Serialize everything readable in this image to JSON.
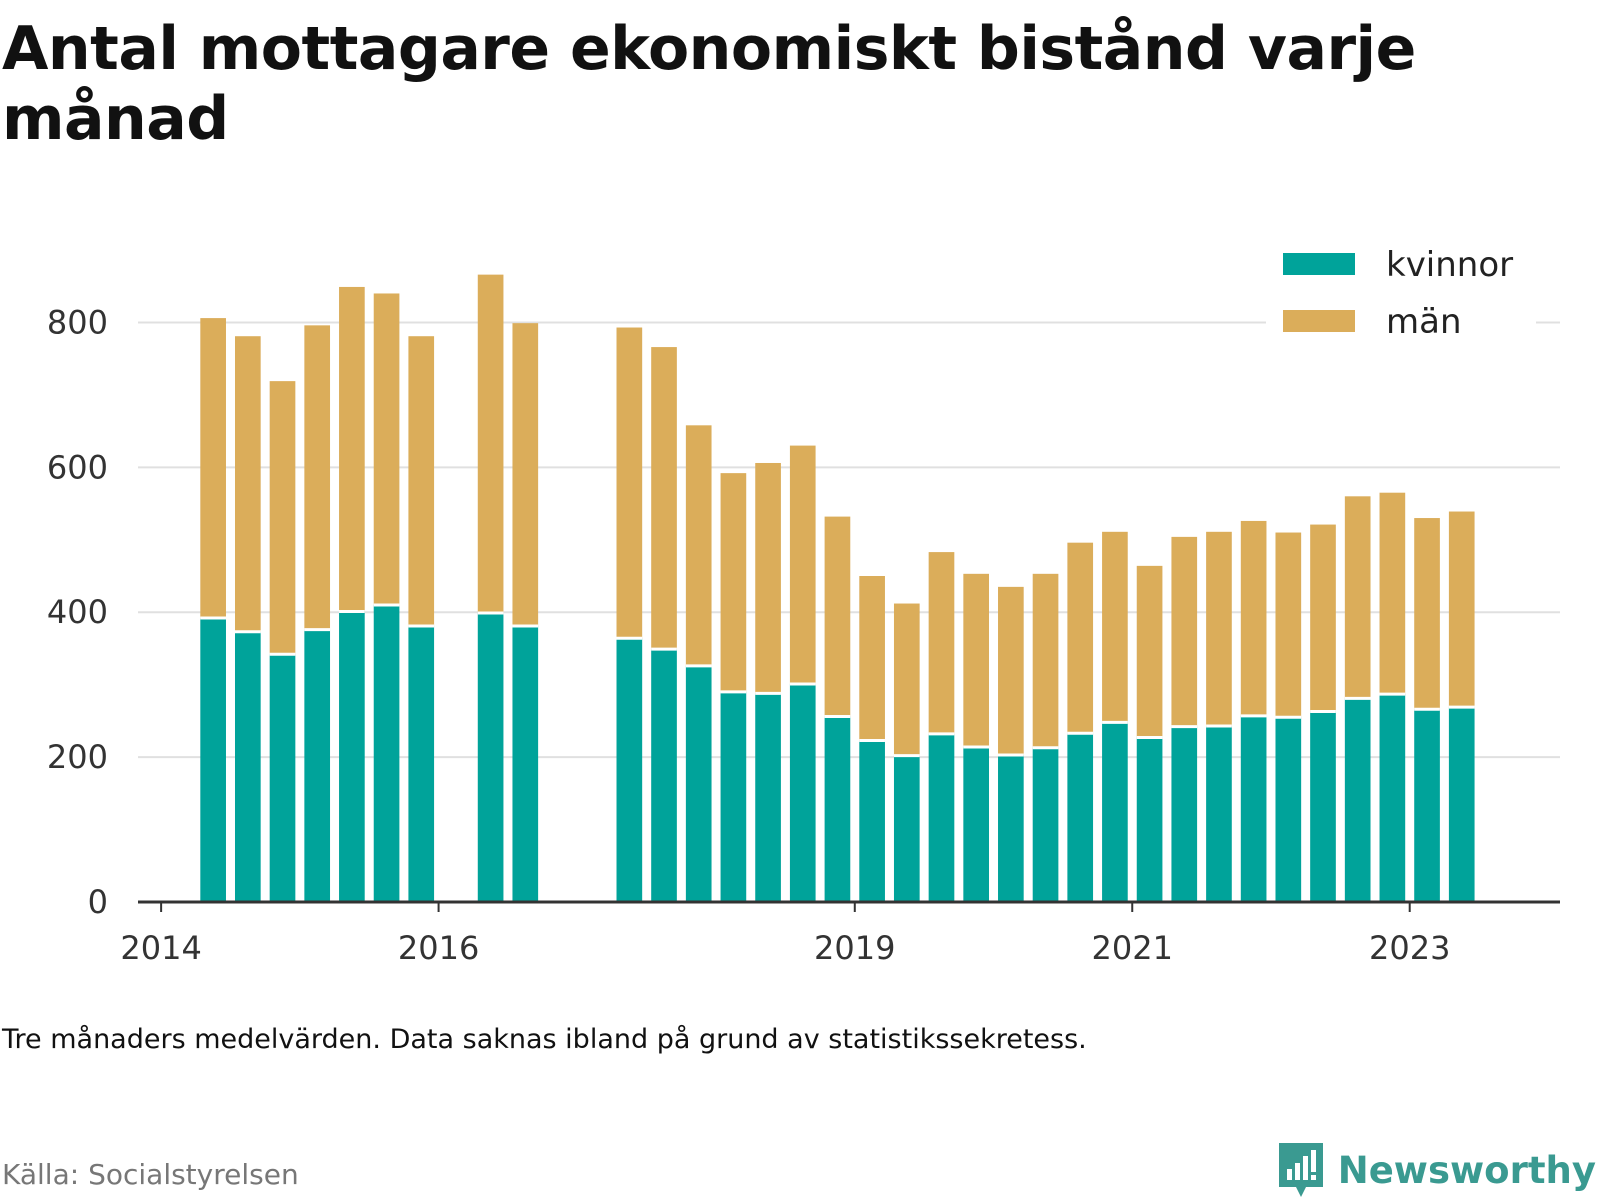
{
  "title": "Antal mottagare ekonomiskt bistånd varje månad",
  "note": "Tre månaders medelvärden. Data saknas ibland på grund av statistikssekretess.",
  "source": "Källa: Socialstyrelsen",
  "brand": "Newsworthy",
  "colors": {
    "kvinnor": "#00a39a",
    "man": "#dbad5a",
    "grid": "#e0e0e0",
    "axis": "#333333",
    "brand": "#3a9a91"
  },
  "chart_data": {
    "type": "bar",
    "stacked": true,
    "ylim": [
      0,
      900
    ],
    "yticks": [
      0,
      200,
      400,
      600,
      800
    ],
    "xlim": [
      "2013-11",
      "2024-02"
    ],
    "xticks": [
      "2014",
      "2016",
      "2019",
      "2021",
      "2023"
    ],
    "legend_position": "top-right",
    "grid": true,
    "series": [
      {
        "name": "kvinnor",
        "color": "#00a39a"
      },
      {
        "name": "män",
        "color": "#dbad5a"
      }
    ],
    "points": [
      {
        "period": "2014-04",
        "kvinnor": 392,
        "man": 414
      },
      {
        "period": "2014-07",
        "kvinnor": 373,
        "man": 408
      },
      {
        "period": "2014-10",
        "kvinnor": 342,
        "man": 377
      },
      {
        "period": "2015-01",
        "kvinnor": 376,
        "man": 420
      },
      {
        "period": "2015-04",
        "kvinnor": 401,
        "man": 448
      },
      {
        "period": "2015-07",
        "kvinnor": 410,
        "man": 430
      },
      {
        "period": "2015-10",
        "kvinnor": 381,
        "man": 400
      },
      {
        "period": "2016-04",
        "kvinnor": 399,
        "man": 467
      },
      {
        "period": "2016-07",
        "kvinnor": 381,
        "man": 418
      },
      {
        "period": "2017-04",
        "kvinnor": 364,
        "man": 429
      },
      {
        "period": "2017-07",
        "kvinnor": 349,
        "man": 417
      },
      {
        "period": "2017-10",
        "kvinnor": 326,
        "man": 332
      },
      {
        "period": "2018-01",
        "kvinnor": 290,
        "man": 302
      },
      {
        "period": "2018-04",
        "kvinnor": 288,
        "man": 318
      },
      {
        "period": "2018-07",
        "kvinnor": 301,
        "man": 329
      },
      {
        "period": "2018-10",
        "kvinnor": 256,
        "man": 276
      },
      {
        "period": "2019-01",
        "kvinnor": 223,
        "man": 227
      },
      {
        "period": "2019-04",
        "kvinnor": 202,
        "man": 210
      },
      {
        "period": "2019-07",
        "kvinnor": 232,
        "man": 251
      },
      {
        "period": "2019-10",
        "kvinnor": 214,
        "man": 239
      },
      {
        "period": "2020-01",
        "kvinnor": 203,
        "man": 232
      },
      {
        "period": "2020-04",
        "kvinnor": 213,
        "man": 240
      },
      {
        "period": "2020-07",
        "kvinnor": 233,
        "man": 263
      },
      {
        "period": "2020-10",
        "kvinnor": 248,
        "man": 263
      },
      {
        "period": "2021-01",
        "kvinnor": 227,
        "man": 237
      },
      {
        "period": "2021-04",
        "kvinnor": 242,
        "man": 262
      },
      {
        "period": "2021-07",
        "kvinnor": 243,
        "man": 268
      },
      {
        "period": "2021-10",
        "kvinnor": 257,
        "man": 269
      },
      {
        "period": "2022-01",
        "kvinnor": 255,
        "man": 255
      },
      {
        "period": "2022-04",
        "kvinnor": 263,
        "man": 258
      },
      {
        "period": "2022-07",
        "kvinnor": 281,
        "man": 279
      },
      {
        "period": "2022-10",
        "kvinnor": 287,
        "man": 278
      },
      {
        "period": "2023-01",
        "kvinnor": 266,
        "man": 264
      },
      {
        "period": "2023-04",
        "kvinnor": 269,
        "man": 270
      }
    ]
  }
}
